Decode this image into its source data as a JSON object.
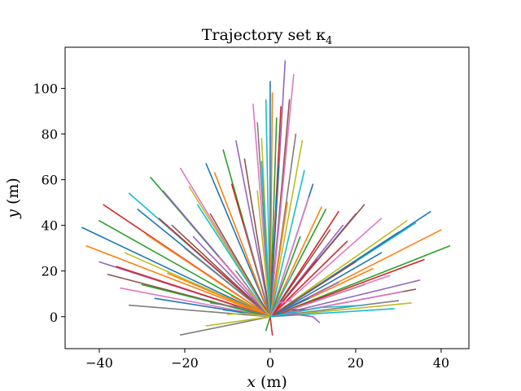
{
  "chart_data": {
    "type": "line",
    "title": "Trajectory set κ",
    "title_subscript": "4",
    "xlabel": "x",
    "xlabel_unit": "(m)",
    "ylabel": "y",
    "ylabel_unit": "(m)",
    "xlim": [
      -48,
      46.5
    ],
    "ylim": [
      -14,
      118
    ],
    "xticks": [
      -40,
      -20,
      0,
      20,
      40
    ],
    "yticks": [
      0,
      20,
      40,
      60,
      80,
      100
    ],
    "grid": false,
    "legend": "none",
    "line_width": 1.6,
    "palette": [
      "#1f77b4",
      "#ff7f0e",
      "#2ca02c",
      "#d62728",
      "#9467bd",
      "#8c564b",
      "#e377c2",
      "#7f7f7f",
      "#bcbd22",
      "#17becf"
    ],
    "series": [
      {
        "points": [
          [
            0,
            0
          ],
          [
            -44,
            39
          ]
        ]
      },
      {
        "points": [
          [
            0,
            0
          ],
          [
            -43,
            31
          ]
        ]
      },
      {
        "points": [
          [
            0,
            0
          ],
          [
            -40,
            42
          ]
        ]
      },
      {
        "points": [
          [
            0,
            0
          ],
          [
            -39,
            49
          ]
        ]
      },
      {
        "points": [
          [
            0,
            0
          ],
          [
            -40,
            24
          ]
        ]
      },
      {
        "points": [
          [
            0,
            0
          ],
          [
            -38,
            18.5
          ]
        ]
      },
      {
        "points": [
          [
            0,
            0
          ],
          [
            -35,
            12.5
          ]
        ]
      },
      {
        "points": [
          [
            0,
            0
          ],
          [
            -33,
            5
          ]
        ]
      },
      {
        "points": [
          [
            0,
            0
          ],
          [
            -34,
            28
          ]
        ]
      },
      {
        "points": [
          [
            0,
            0
          ],
          [
            -33,
            54
          ]
        ]
      },
      {
        "points": [
          [
            0,
            0
          ],
          [
            -31,
            47
          ]
        ]
      },
      {
        "points": [
          [
            0,
            0
          ],
          [
            -29,
            36
          ]
        ]
      },
      {
        "points": [
          [
            0,
            0
          ],
          [
            -28,
            61
          ]
        ]
      },
      {
        "points": [
          [
            0,
            0
          ],
          [
            -26,
            43
          ]
        ]
      },
      {
        "points": [
          [
            0,
            0
          ],
          [
            -25,
            55
          ]
        ]
      },
      {
        "points": [
          [
            0,
            0
          ],
          [
            -23,
            40
          ]
        ]
      },
      {
        "points": [
          [
            0,
            0
          ],
          [
            -21,
            65
          ]
        ]
      },
      {
        "points": [
          [
            0,
            0
          ],
          [
            -20,
            30
          ]
        ]
      },
      {
        "points": [
          [
            0,
            0
          ],
          [
            -19,
            57
          ]
        ]
      },
      {
        "points": [
          [
            0,
            0
          ],
          [
            -17,
            49
          ]
        ]
      },
      {
        "points": [
          [
            0,
            0
          ],
          [
            -15,
            67
          ]
        ]
      },
      {
        "points": [
          [
            0,
            0
          ],
          [
            -13,
            63
          ]
        ]
      },
      {
        "points": [
          [
            0,
            0
          ],
          [
            -11,
            73
          ]
        ]
      },
      {
        "points": [
          [
            0,
            0
          ],
          [
            -9,
            58
          ]
        ]
      },
      {
        "points": [
          [
            0,
            0
          ],
          [
            -8,
            77
          ]
        ]
      },
      {
        "points": [
          [
            0,
            0
          ],
          [
            -6,
            69
          ]
        ]
      },
      {
        "points": [
          [
            0,
            0
          ],
          [
            -4,
            93
          ]
        ]
      },
      {
        "points": [
          [
            0,
            0
          ],
          [
            -3,
            85
          ]
        ]
      },
      {
        "points": [
          [
            0,
            0
          ],
          [
            -2,
            78
          ]
        ]
      },
      {
        "points": [
          [
            0,
            0
          ],
          [
            -1,
            95
          ]
        ]
      },
      {
        "points": [
          [
            0,
            0
          ],
          [
            0,
            103
          ]
        ]
      },
      {
        "points": [
          [
            0,
            0
          ],
          [
            0.5,
            98
          ]
        ]
      },
      {
        "points": [
          [
            0,
            0
          ],
          [
            1.5,
            87
          ]
        ]
      },
      {
        "points": [
          [
            0,
            0
          ],
          [
            2.5,
            92
          ]
        ]
      },
      {
        "points": [
          [
            0,
            0
          ],
          [
            3.5,
            112
          ]
        ]
      },
      {
        "points": [
          [
            0,
            0
          ],
          [
            4.5,
            95
          ]
        ]
      },
      {
        "points": [
          [
            0,
            0
          ],
          [
            5.5,
            106
          ]
        ]
      },
      {
        "points": [
          [
            0,
            0
          ],
          [
            6,
            80
          ]
        ]
      },
      {
        "points": [
          [
            0,
            0
          ],
          [
            7.5,
            77
          ]
        ]
      },
      {
        "points": [
          [
            0,
            0
          ],
          [
            8,
            64
          ]
        ]
      },
      {
        "points": [
          [
            0,
            0
          ],
          [
            10,
            58
          ]
        ]
      },
      {
        "points": [
          [
            0,
            0
          ],
          [
            12,
            48
          ]
        ]
      },
      {
        "points": [
          [
            0,
            0
          ],
          [
            13,
            47
          ]
        ]
      },
      {
        "points": [
          [
            0,
            0
          ],
          [
            16,
            46
          ]
        ]
      },
      {
        "points": [
          [
            0,
            0
          ],
          [
            20,
            45
          ]
        ]
      },
      {
        "points": [
          [
            0,
            0
          ],
          [
            22,
            49
          ]
        ]
      },
      {
        "points": [
          [
            0,
            0
          ],
          [
            26,
            43
          ]
        ]
      },
      {
        "points": [
          [
            0,
            0
          ],
          [
            30,
            37
          ]
        ]
      },
      {
        "points": [
          [
            0,
            0
          ],
          [
            32,
            42
          ]
        ]
      },
      {
        "points": [
          [
            0,
            0
          ],
          [
            34,
            41
          ]
        ]
      },
      {
        "points": [
          [
            0,
            0
          ],
          [
            37.5,
            46
          ]
        ]
      },
      {
        "points": [
          [
            0,
            0
          ],
          [
            40,
            38
          ]
        ]
      },
      {
        "points": [
          [
            0,
            0
          ],
          [
            42,
            31
          ]
        ]
      },
      {
        "points": [
          [
            0,
            0
          ],
          [
            36,
            25
          ]
        ]
      },
      {
        "points": [
          [
            0,
            0
          ],
          [
            35,
            16
          ]
        ]
      },
      {
        "points": [
          [
            0,
            0
          ],
          [
            34,
            12
          ]
        ]
      },
      {
        "points": [
          [
            0,
            0
          ],
          [
            31,
            11
          ]
        ]
      },
      {
        "points": [
          [
            0,
            0
          ],
          [
            30,
            7
          ]
        ]
      },
      {
        "points": [
          [
            0,
            0
          ],
          [
            33,
            6
          ]
        ]
      },
      {
        "points": [
          [
            0,
            0
          ],
          [
            29,
            3.5
          ]
        ]
      },
      {
        "points": [
          [
            0,
            0
          ],
          [
            26,
            28
          ]
        ]
      },
      {
        "points": [
          [
            0,
            0
          ],
          [
            24,
            21
          ]
        ]
      },
      {
        "points": [
          [
            0,
            0
          ],
          [
            22,
            14
          ]
        ]
      },
      {
        "points": [
          [
            0,
            0
          ],
          [
            18,
            33
          ]
        ]
      },
      {
        "points": [
          [
            0,
            0
          ],
          [
            17,
            40
          ]
        ]
      },
      {
        "points": [
          [
            0,
            0
          ],
          [
            14,
            38
          ]
        ]
      },
      {
        "points": [
          [
            0,
            0
          ],
          [
            9,
            52
          ]
        ]
      },
      {
        "points": [
          [
            0,
            0
          ],
          [
            -21,
            -8
          ]
        ]
      },
      {
        "points": [
          [
            0,
            0
          ],
          [
            -15,
            -4
          ]
        ]
      },
      {
        "points": [
          [
            0,
            0
          ],
          [
            -11,
            3
          ]
        ]
      },
      {
        "points": [
          [
            0,
            0
          ],
          [
            -27,
            8
          ]
        ]
      },
      {
        "points": [
          [
            0,
            0
          ],
          [
            -24,
            19
          ]
        ]
      },
      {
        "points": [
          [
            0,
            0
          ],
          [
            -30,
            14
          ]
        ]
      },
      {
        "points": [
          [
            0,
            0
          ],
          [
            -36,
            22
          ]
        ]
      },
      {
        "points": [
          [
            0,
            0
          ],
          [
            -18,
            35
          ]
        ]
      },
      {
        "points": [
          [
            0,
            0
          ],
          [
            -14,
            45
          ]
        ]
      },
      {
        "points": [
          [
            0,
            0
          ],
          [
            -12,
            26
          ]
        ]
      },
      {
        "points": [
          [
            0,
            0
          ],
          [
            -6,
            40
          ]
        ]
      },
      {
        "points": [
          [
            0,
            0
          ],
          [
            -3,
            55
          ]
        ]
      },
      {
        "points": [
          [
            0,
            0
          ],
          [
            -2,
            68
          ]
        ]
      },
      {
        "points": [
          [
            0,
            0
          ],
          [
            2,
            66
          ]
        ]
      },
      {
        "points": [
          [
            0,
            0
          ],
          [
            4,
            50
          ]
        ]
      },
      {
        "points": [
          [
            0,
            0
          ],
          [
            7,
            35
          ]
        ]
      },
      {
        "points": [
          [
            0,
            0
          ],
          [
            11,
            25
          ]
        ]
      },
      {
        "points": [
          [
            0,
            0
          ],
          [
            16,
            15
          ]
        ]
      },
      {
        "points": [
          [
            0,
            0
          ],
          [
            20,
            24
          ]
        ]
      },
      {
        "points": [
          [
            0,
            0
          ],
          [
            28,
            18
          ]
        ]
      },
      {
        "points": [
          [
            0,
            0
          ],
          [
            -8,
            20
          ]
        ]
      },
      {
        "points": [
          [
            0,
            0
          ],
          [
            -5,
            12
          ]
        ]
      },
      {
        "points": [
          [
            0,
            0
          ],
          [
            5,
            18
          ]
        ]
      },
      {
        "points": [
          [
            0,
            0
          ],
          [
            9,
            8
          ]
        ]
      },
      {
        "points": [
          [
            0,
            0
          ],
          [
            -9,
            9
          ]
        ]
      },
      {
        "points": [
          [
            0,
            0
          ],
          [
            -1,
            -6
          ]
        ]
      },
      {
        "points": [
          [
            0,
            0
          ],
          [
            0.5,
            -8
          ]
        ]
      },
      {
        "points": [
          [
            0,
            0
          ],
          [
            6,
            1
          ],
          [
            10,
            0
          ],
          [
            11.5,
            -2.5
          ]
        ]
      },
      {
        "points": [
          [
            0,
            0
          ],
          [
            5,
            3
          ],
          [
            9,
            3
          ]
        ]
      },
      {
        "points": [
          [
            0,
            0
          ],
          [
            2,
            6
          ],
          [
            5,
            7
          ]
        ]
      },
      {
        "points": [
          [
            0,
            0
          ],
          [
            -7,
            4
          ],
          [
            -14,
            6
          ]
        ]
      },
      {
        "points": [
          [
            0,
            0
          ],
          [
            -6,
            1.5
          ],
          [
            -10,
            1
          ]
        ]
      },
      {
        "points": [
          [
            0,
            0
          ],
          [
            12,
            4
          ],
          [
            22,
            5
          ]
        ]
      }
    ]
  }
}
